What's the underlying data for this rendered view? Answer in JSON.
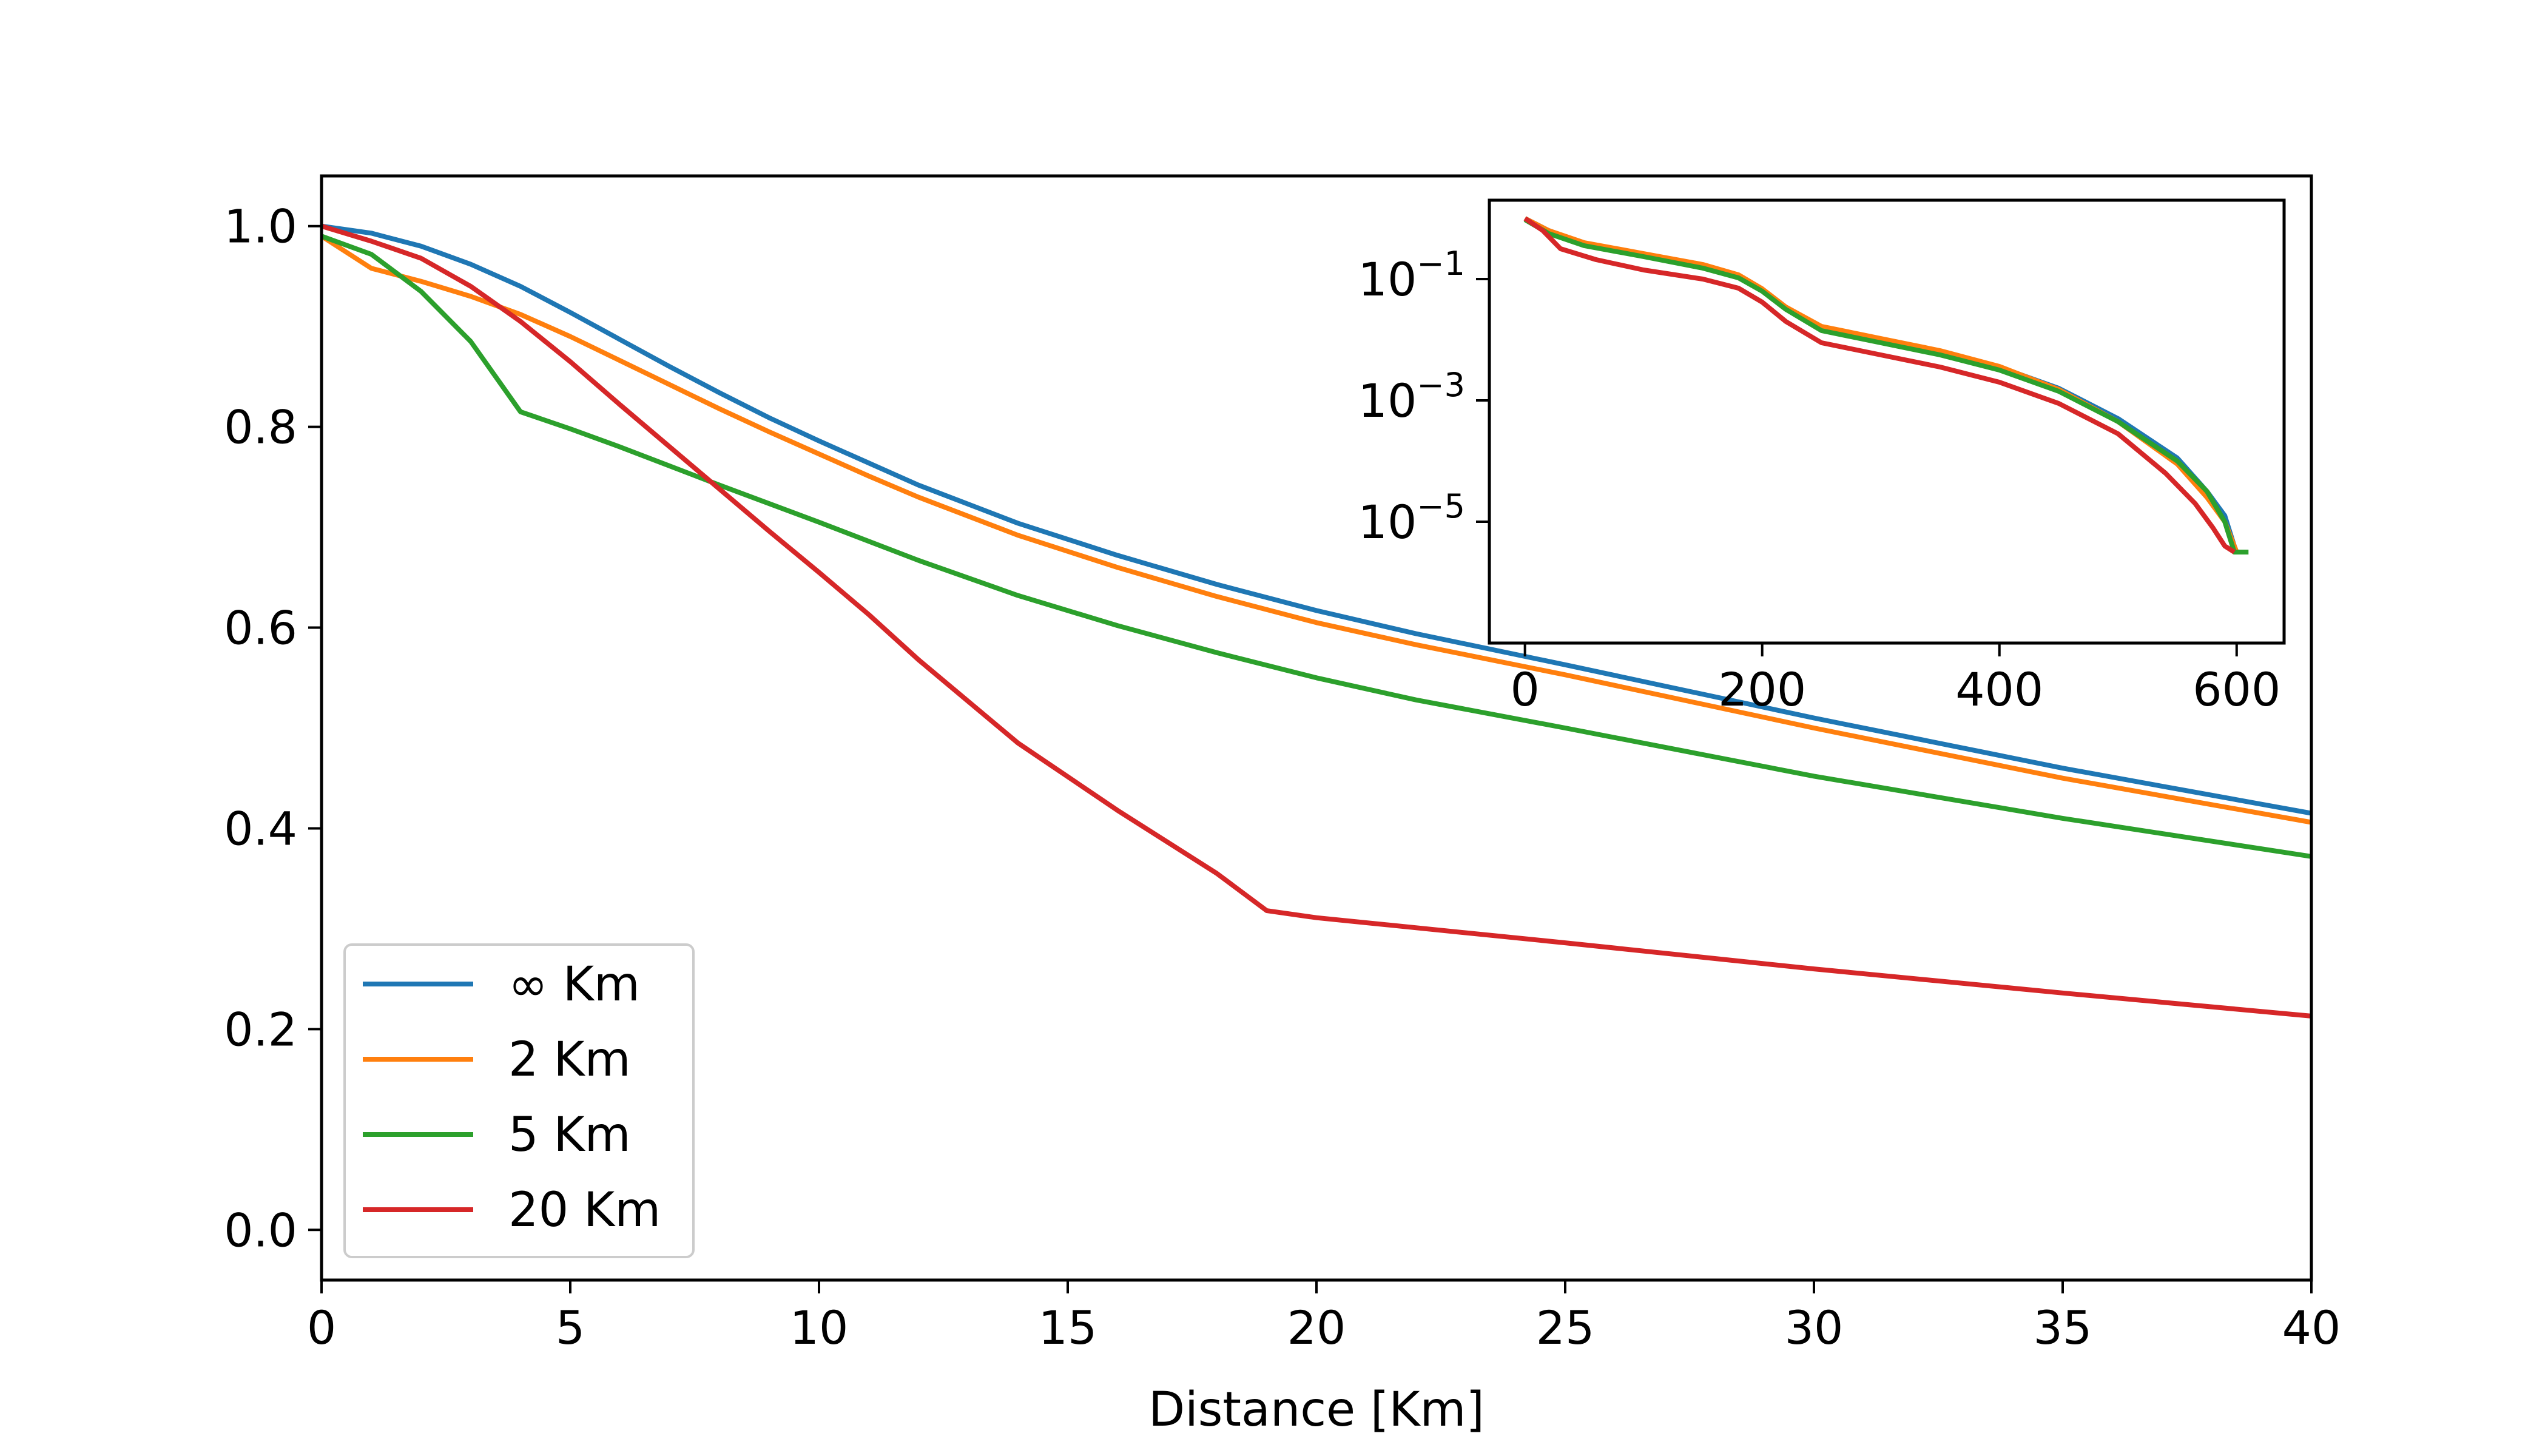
{
  "chart_data": [
    {
      "type": "line",
      "xlabel": "Distance [Km]",
      "ylabel": "",
      "xlim": [
        0,
        40
      ],
      "ylim": [
        -0.05,
        1.05
      ],
      "xticks": [
        0,
        5,
        10,
        15,
        20,
        25,
        30,
        35,
        40
      ],
      "xtick_labels": [
        "0",
        "5",
        "10",
        "15",
        "20",
        "25",
        "30",
        "35",
        "40"
      ],
      "yticks": [
        0.0,
        0.2,
        0.4,
        0.6,
        0.8,
        1.0
      ],
      "ytick_labels": [
        "0.0",
        "0.2",
        "0.4",
        "0.6",
        "0.8",
        "1.0"
      ],
      "grid": false,
      "legend": "lower-left",
      "series": [
        {
          "name": "∞ Km",
          "color": "#1f77b4",
          "x": [
            0,
            1,
            2,
            3,
            4,
            5,
            6,
            7,
            8,
            9,
            10,
            11,
            12,
            14,
            16,
            18,
            20,
            22,
            25,
            30,
            35,
            40
          ],
          "y": [
            1.0,
            0.993,
            0.98,
            0.962,
            0.94,
            0.914,
            0.887,
            0.86,
            0.834,
            0.809,
            0.786,
            0.764,
            0.742,
            0.704,
            0.672,
            0.643,
            0.617,
            0.594,
            0.563,
            0.51,
            0.46,
            0.415
          ]
        },
        {
          "name": "2 Km",
          "color": "#ff7f0e",
          "x": [
            0,
            1,
            2,
            3,
            4,
            5,
            6,
            7,
            8,
            9,
            10,
            11,
            12,
            14,
            16,
            18,
            20,
            22,
            25,
            30,
            35,
            40
          ],
          "y": [
            0.99,
            0.958,
            0.945,
            0.93,
            0.912,
            0.89,
            0.866,
            0.842,
            0.818,
            0.795,
            0.773,
            0.751,
            0.73,
            0.692,
            0.66,
            0.631,
            0.605,
            0.583,
            0.553,
            0.5,
            0.45,
            0.406
          ]
        },
        {
          "name": "5 Km",
          "color": "#2ca02c",
          "x": [
            0,
            1,
            2,
            3,
            4,
            5,
            6,
            8,
            10,
            12,
            14,
            16,
            18,
            20,
            22,
            25,
            30,
            35,
            40
          ],
          "y": [
            0.99,
            0.972,
            0.935,
            0.885,
            0.815,
            0.798,
            0.78,
            0.742,
            0.705,
            0.667,
            0.632,
            0.602,
            0.575,
            0.55,
            0.528,
            0.5,
            0.452,
            0.41,
            0.372
          ]
        },
        {
          "name": "20 Km",
          "color": "#d62728",
          "x": [
            0,
            1,
            2,
            3,
            4,
            5,
            6,
            7,
            8,
            9,
            10,
            11,
            12,
            14,
            16,
            18,
            19,
            20,
            25,
            30,
            35,
            40
          ],
          "y": [
            1.0,
            0.985,
            0.968,
            0.94,
            0.905,
            0.865,
            0.822,
            0.78,
            0.738,
            0.696,
            0.655,
            0.613,
            0.568,
            0.485,
            0.418,
            0.355,
            0.318,
            0.311,
            0.286,
            0.26,
            0.236,
            0.213
          ]
        }
      ]
    },
    {
      "type": "line",
      "inset": true,
      "xlabel": "",
      "ylabel": "",
      "xlim": [
        -30,
        640
      ],
      "ylim": [
        -7,
        0.3
      ],
      "yscale": "log",
      "xticks": [
        0,
        200,
        400,
        600
      ],
      "xtick_labels": [
        "0",
        "200",
        "400",
        "600"
      ],
      "yticks": [
        -1,
        -3,
        -5
      ],
      "ytick_labels": [
        {
          "base": "10",
          "exp": "−1"
        },
        {
          "base": "10",
          "exp": "−3"
        },
        {
          "base": "10",
          "exp": "−5"
        }
      ],
      "series": [
        {
          "name": "∞ Km",
          "color": "#1f77b4",
          "x": [
            0,
            20,
            50,
            100,
            150,
            180,
            200,
            220,
            250,
            300,
            350,
            400,
            450,
            500,
            550,
            575,
            590,
            598,
            600
          ],
          "y": [
            0.0,
            -0.2,
            -0.42,
            -0.6,
            -0.78,
            -0.95,
            -1.18,
            -1.48,
            -1.8,
            -2.0,
            -2.2,
            -2.45,
            -2.8,
            -3.3,
            -3.95,
            -4.5,
            -4.9,
            -5.4,
            -5.5
          ]
        },
        {
          "name": "2 Km",
          "color": "#ff7f0e",
          "x": [
            0,
            20,
            50,
            100,
            150,
            180,
            200,
            220,
            250,
            300,
            350,
            400,
            450,
            500,
            550,
            575,
            590,
            598,
            600
          ],
          "y": [
            0.0,
            -0.2,
            -0.4,
            -0.58,
            -0.76,
            -0.93,
            -1.16,
            -1.46,
            -1.78,
            -1.98,
            -2.18,
            -2.44,
            -2.82,
            -3.35,
            -4.05,
            -4.6,
            -5.0,
            -5.4,
            -5.5
          ]
        },
        {
          "name": "5 Km",
          "color": "#2ca02c",
          "x": [
            0,
            20,
            50,
            100,
            150,
            180,
            200,
            220,
            250,
            300,
            350,
            400,
            450,
            500,
            550,
            575,
            590,
            598,
            610
          ],
          "y": [
            -0.02,
            -0.25,
            -0.45,
            -0.63,
            -0.82,
            -0.98,
            -1.2,
            -1.5,
            -1.85,
            -2.05,
            -2.25,
            -2.5,
            -2.85,
            -3.35,
            -4.0,
            -4.5,
            -5.0,
            -5.5,
            -5.5
          ]
        },
        {
          "name": "20 Km",
          "color": "#d62728",
          "x": [
            0,
            15,
            30,
            60,
            100,
            150,
            180,
            200,
            220,
            250,
            300,
            350,
            400,
            450,
            500,
            540,
            565,
            580,
            590,
            598
          ],
          "y": [
            0.0,
            -0.2,
            -0.5,
            -0.68,
            -0.85,
            -1.0,
            -1.15,
            -1.38,
            -1.7,
            -2.05,
            -2.25,
            -2.45,
            -2.7,
            -3.05,
            -3.55,
            -4.2,
            -4.7,
            -5.1,
            -5.4,
            -5.5
          ]
        }
      ]
    }
  ]
}
